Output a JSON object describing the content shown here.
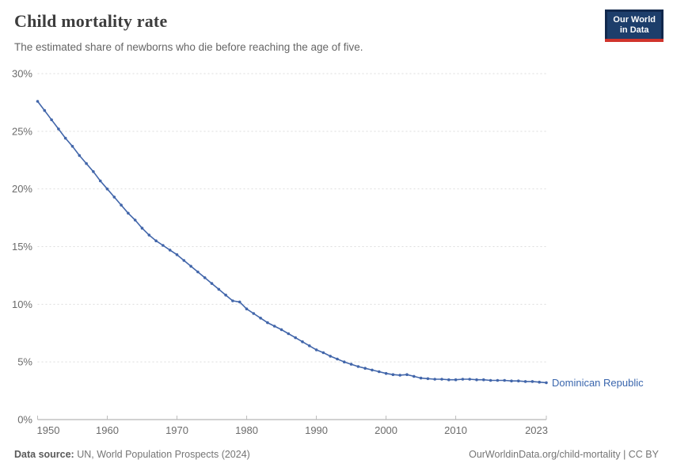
{
  "header": {
    "title": "Child mortality rate",
    "subtitle": "The estimated share of newborns who die before reaching the age of five.",
    "logo_line1": "Our World",
    "logo_line2": "in Data"
  },
  "footer": {
    "source_label": "Data source:",
    "source_text": " UN, World Population Prospects (2024)",
    "attribution": "OurWorldinData.org/child-mortality | CC BY"
  },
  "colors": {
    "line": "#4266aa",
    "entity_label": "#3a66ad",
    "gridline": "#dddddd",
    "axis_line": "#a3a3a3",
    "tick_mark": "#bdbdbd",
    "tick_text": "#6b6b6b",
    "logo_navy": "#12294d",
    "logo_red": "#d0342c"
  },
  "chart_data": {
    "type": "line",
    "title": "Child mortality rate",
    "subtitle": "The estimated share of newborns who die before reaching the age of five.",
    "legend_position": "end-of-line-label",
    "grid": "horizontal-dashed",
    "x": {
      "label": "",
      "start_year": 1950,
      "end_year": 2023,
      "ticks": [
        1950,
        1960,
        1970,
        1980,
        1990,
        2000,
        2010,
        2023
      ]
    },
    "y": {
      "label": "",
      "unit": "%",
      "range": [
        0,
        30
      ],
      "ticks": [
        0,
        5,
        10,
        15,
        20,
        25,
        30
      ]
    },
    "series": [
      {
        "name": "Dominican Republic",
        "values": [
          27.6,
          26.8,
          26.0,
          25.2,
          24.4,
          23.7,
          22.9,
          22.2,
          21.5,
          20.7,
          20.0,
          19.3,
          18.6,
          17.9,
          17.3,
          16.6,
          16.0,
          15.5,
          15.1,
          14.7,
          14.3,
          13.8,
          13.3,
          12.8,
          12.3,
          11.8,
          11.3,
          10.8,
          10.3,
          10.2,
          9.6,
          9.2,
          8.8,
          8.4,
          8.1,
          7.8,
          7.45,
          7.1,
          6.75,
          6.4,
          6.05,
          5.8,
          5.5,
          5.25,
          5.0,
          4.8,
          4.6,
          4.45,
          4.3,
          4.15,
          4.0,
          3.9,
          3.85,
          3.9,
          3.75,
          3.6,
          3.55,
          3.5,
          3.5,
          3.45,
          3.45,
          3.5,
          3.5,
          3.45,
          3.45,
          3.4,
          3.4,
          3.4,
          3.35,
          3.35,
          3.3,
          3.3,
          3.25,
          3.2
        ]
      }
    ]
  }
}
